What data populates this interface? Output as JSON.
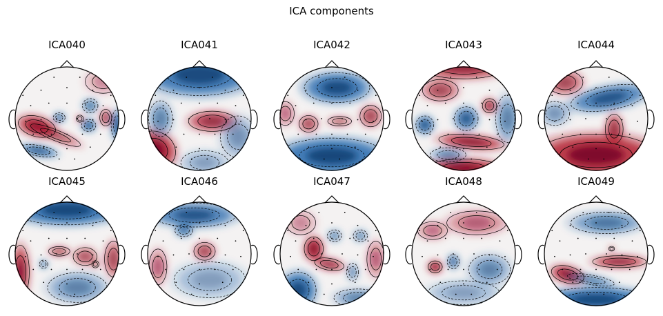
{
  "figure": {
    "title": "ICA components",
    "components": [
      {
        "label": "ICA040",
        "blobs": [
          {
            "u": -0.58,
            "v": 0.15,
            "rx": 0.32,
            "ry": 0.17,
            "rot": 15,
            "sign": 1,
            "amp": 0.95
          },
          {
            "u": -0.22,
            "v": 0.32,
            "rx": 0.45,
            "ry": 0.09,
            "rot": 22,
            "sign": 1,
            "amp": 0.6
          },
          {
            "u": -0.55,
            "v": 0.62,
            "rx": 0.32,
            "ry": 0.09,
            "rot": 10,
            "sign": -1,
            "amp": 0.9
          },
          {
            "u": -0.15,
            "v": -0.02,
            "rx": 0.1,
            "ry": 0.08,
            "rot": 0,
            "sign": -1,
            "amp": 0.8
          },
          {
            "u": 0.25,
            "v": 0.0,
            "rx": 0.06,
            "ry": 0.06,
            "rot": 0,
            "sign": 1,
            "amp": 0.6
          },
          {
            "u": 0.45,
            "v": -0.25,
            "rx": 0.13,
            "ry": 0.12,
            "rot": 0,
            "sign": -1,
            "amp": 0.6
          },
          {
            "u": 0.42,
            "v": 0.13,
            "rx": 0.12,
            "ry": 0.1,
            "rot": 0,
            "sign": -1,
            "amp": 0.95
          },
          {
            "u": 0.75,
            "v": -0.02,
            "rx": 0.1,
            "ry": 0.14,
            "rot": 0,
            "sign": 1,
            "amp": 0.65
          },
          {
            "u": 0.97,
            "v": 0.12,
            "rx": 0.1,
            "ry": 0.25,
            "rot": 0,
            "sign": -1,
            "amp": 0.9
          },
          {
            "u": 0.7,
            "v": -0.72,
            "rx": 0.3,
            "ry": 0.2,
            "rot": 0,
            "sign": 1,
            "amp": 0.3
          }
        ]
      },
      {
        "label": "ICA041",
        "blobs": [
          {
            "u": 0.0,
            "v": -0.85,
            "rx": 0.9,
            "ry": 0.35,
            "rot": 0,
            "sign": -1,
            "amp": 0.95
          },
          {
            "u": -0.85,
            "v": 0.6,
            "rx": 0.35,
            "ry": 0.3,
            "rot": 30,
            "sign": 1,
            "amp": 1.0
          },
          {
            "u": 0.25,
            "v": 0.05,
            "rx": 0.4,
            "ry": 0.17,
            "rot": 0,
            "sign": 1,
            "amp": 0.75
          },
          {
            "u": -0.75,
            "v": 0.0,
            "rx": 0.2,
            "ry": 0.3,
            "rot": 0,
            "sign": -1,
            "amp": 0.5
          },
          {
            "u": 0.75,
            "v": 0.35,
            "rx": 0.3,
            "ry": 0.35,
            "rot": 0,
            "sign": -1,
            "amp": 0.4
          },
          {
            "u": 0.1,
            "v": 0.85,
            "rx": 0.4,
            "ry": 0.2,
            "rot": 0,
            "sign": -1,
            "amp": 0.35
          }
        ]
      },
      {
        "label": "ICA042",
        "blobs": [
          {
            "u": 0.1,
            "v": -0.6,
            "rx": 0.55,
            "ry": 0.25,
            "rot": 0,
            "sign": -1,
            "amp": 0.95
          },
          {
            "u": 0.0,
            "v": 0.72,
            "rx": 0.9,
            "ry": 0.3,
            "rot": 0,
            "sign": -1,
            "amp": 1.0
          },
          {
            "u": -0.45,
            "v": 0.1,
            "rx": 0.16,
            "ry": 0.14,
            "rot": 0,
            "sign": 1,
            "amp": 0.6
          },
          {
            "u": 0.15,
            "v": 0.05,
            "rx": 0.2,
            "ry": 0.08,
            "rot": 0,
            "sign": 1,
            "amp": 0.5
          },
          {
            "u": 0.75,
            "v": -0.05,
            "rx": 0.18,
            "ry": 0.18,
            "rot": 0,
            "sign": 1,
            "amp": 0.6
          },
          {
            "u": -0.9,
            "v": -0.1,
            "rx": 0.15,
            "ry": 0.2,
            "rot": 0,
            "sign": 1,
            "amp": 0.4
          }
        ]
      },
      {
        "label": "ICA043",
        "blobs": [
          {
            "u": 0.0,
            "v": -1.0,
            "rx": 0.7,
            "ry": 0.2,
            "rot": 0,
            "sign": 1,
            "amp": 0.8
          },
          {
            "u": -0.45,
            "v": -0.55,
            "rx": 0.3,
            "ry": 0.18,
            "rot": 0,
            "sign": 1,
            "amp": 0.6
          },
          {
            "u": -0.75,
            "v": 0.12,
            "rx": 0.15,
            "ry": 0.15,
            "rot": 0,
            "sign": -1,
            "amp": 0.9
          },
          {
            "u": 0.05,
            "v": 0.0,
            "rx": 0.2,
            "ry": 0.2,
            "rot": 0,
            "sign": -1,
            "amp": 0.8
          },
          {
            "u": 0.5,
            "v": -0.25,
            "rx": 0.12,
            "ry": 0.12,
            "rot": 0,
            "sign": 1,
            "amp": 0.8
          },
          {
            "u": 0.15,
            "v": 0.45,
            "rx": 0.55,
            "ry": 0.12,
            "rot": 5,
            "sign": 1,
            "amp": 0.9
          },
          {
            "u": 0.0,
            "v": 0.95,
            "rx": 0.6,
            "ry": 0.15,
            "rot": 0,
            "sign": 1,
            "amp": 1.0
          },
          {
            "u": 0.85,
            "v": 0.0,
            "rx": 0.2,
            "ry": 0.4,
            "rot": 0,
            "sign": -1,
            "amp": 0.5
          },
          {
            "u": -0.3,
            "v": 0.7,
            "rx": 0.3,
            "ry": 0.12,
            "rot": 0,
            "sign": -1,
            "amp": 0.5
          }
        ]
      },
      {
        "label": "ICA044",
        "blobs": [
          {
            "u": 0.0,
            "v": 0.7,
            "rx": 1.0,
            "ry": 0.35,
            "rot": 0,
            "sign": 1,
            "amp": 1.0
          },
          {
            "u": 0.25,
            "v": -0.4,
            "rx": 0.65,
            "ry": 0.2,
            "rot": -10,
            "sign": -1,
            "amp": 0.85
          },
          {
            "u": -0.6,
            "v": -0.7,
            "rx": 0.3,
            "ry": 0.2,
            "rot": 0,
            "sign": 1,
            "amp": 0.6
          },
          {
            "u": 0.35,
            "v": 0.2,
            "rx": 0.15,
            "ry": 0.25,
            "rot": 0,
            "sign": 1,
            "amp": 0.7
          },
          {
            "u": -0.8,
            "v": -0.1,
            "rx": 0.25,
            "ry": 0.2,
            "rot": 0,
            "sign": -1,
            "amp": 0.4
          }
        ]
      },
      {
        "label": "ICA045",
        "blobs": [
          {
            "u": 0.0,
            "v": -0.85,
            "rx": 0.9,
            "ry": 0.25,
            "rot": 0,
            "sign": -1,
            "amp": 1.0
          },
          {
            "u": -0.9,
            "v": 0.35,
            "rx": 0.15,
            "ry": 0.45,
            "rot": 0,
            "sign": 1,
            "amp": 0.85
          },
          {
            "u": 0.9,
            "v": 0.1,
            "rx": 0.15,
            "ry": 0.3,
            "rot": 0,
            "sign": 1,
            "amp": 0.6
          },
          {
            "u": -0.15,
            "v": -0.05,
            "rx": 0.18,
            "ry": 0.08,
            "rot": 0,
            "sign": 1,
            "amp": 0.6
          },
          {
            "u": 0.35,
            "v": 0.05,
            "rx": 0.2,
            "ry": 0.15,
            "rot": 0,
            "sign": 1,
            "amp": 0.55
          },
          {
            "u": 0.55,
            "v": 0.2,
            "rx": 0.06,
            "ry": 0.06,
            "rot": 0,
            "sign": 1,
            "amp": 0.7
          },
          {
            "u": -0.45,
            "v": 0.2,
            "rx": 0.07,
            "ry": 0.07,
            "rot": 0,
            "sign": -1,
            "amp": 0.7
          },
          {
            "u": 0.2,
            "v": 0.65,
            "rx": 0.5,
            "ry": 0.25,
            "rot": 0,
            "sign": -1,
            "amp": 0.5
          }
        ]
      },
      {
        "label": "ICA046",
        "blobs": [
          {
            "u": -0.1,
            "v": -0.75,
            "rx": 0.7,
            "ry": 0.2,
            "rot": 0,
            "sign": -1,
            "amp": 0.85
          },
          {
            "u": -0.3,
            "v": -0.45,
            "rx": 0.15,
            "ry": 0.1,
            "rot": 0,
            "sign": -1,
            "amp": 0.7
          },
          {
            "u": -0.8,
            "v": 0.25,
            "rx": 0.15,
            "ry": 0.3,
            "rot": 0,
            "sign": 1,
            "amp": 0.45
          },
          {
            "u": 0.1,
            "v": -0.05,
            "rx": 0.18,
            "ry": 0.15,
            "rot": 0,
            "sign": 1,
            "amp": 0.6
          },
          {
            "u": 0.2,
            "v": 0.5,
            "rx": 0.6,
            "ry": 0.3,
            "rot": 0,
            "sign": -1,
            "amp": 0.35
          }
        ]
      },
      {
        "label": "ICA047",
        "blobs": [
          {
            "u": -0.35,
            "v": -0.1,
            "rx": 0.16,
            "ry": 0.2,
            "rot": 0,
            "sign": 1,
            "amp": 0.95
          },
          {
            "u": -0.05,
            "v": 0.2,
            "rx": 0.25,
            "ry": 0.1,
            "rot": 10,
            "sign": 1,
            "amp": 0.75
          },
          {
            "u": -0.65,
            "v": 0.7,
            "rx": 0.3,
            "ry": 0.3,
            "rot": 0,
            "sign": -1,
            "amp": 0.95
          },
          {
            "u": 0.55,
            "v": -0.35,
            "rx": 0.12,
            "ry": 0.1,
            "rot": 0,
            "sign": -1,
            "amp": 0.5
          },
          {
            "u": 0.05,
            "v": -0.35,
            "rx": 0.12,
            "ry": 0.1,
            "rot": 0,
            "sign": -1,
            "amp": 0.5
          },
          {
            "u": 0.4,
            "v": 0.35,
            "rx": 0.1,
            "ry": 0.15,
            "rot": 0,
            "sign": -1,
            "amp": 0.45
          },
          {
            "u": 0.85,
            "v": 0.1,
            "rx": 0.15,
            "ry": 0.3,
            "rot": 0,
            "sign": 1,
            "amp": 0.45
          },
          {
            "u": 0.5,
            "v": 0.85,
            "rx": 0.4,
            "ry": 0.15,
            "rot": 0,
            "sign": -1,
            "amp": 0.5
          },
          {
            "u": -0.6,
            "v": -0.6,
            "rx": 0.25,
            "ry": 0.2,
            "rot": 0,
            "sign": 1,
            "amp": 0.3
          }
        ]
      },
      {
        "label": "ICA048",
        "blobs": [
          {
            "u": -0.55,
            "v": 0.25,
            "rx": 0.12,
            "ry": 0.1,
            "rot": 0,
            "sign": 1,
            "amp": 1.0
          },
          {
            "u": -0.2,
            "v": 0.15,
            "rx": 0.1,
            "ry": 0.12,
            "rot": 0,
            "sign": -1,
            "amp": 0.75
          },
          {
            "u": 0.25,
            "v": -0.6,
            "rx": 0.5,
            "ry": 0.2,
            "rot": 0,
            "sign": 1,
            "amp": 0.45
          },
          {
            "u": 0.5,
            "v": 0.3,
            "rx": 0.35,
            "ry": 0.25,
            "rot": 0,
            "sign": -1,
            "amp": 0.5
          },
          {
            "u": -0.6,
            "v": -0.45,
            "rx": 0.25,
            "ry": 0.15,
            "rot": 0,
            "sign": 1,
            "amp": 0.4
          },
          {
            "u": 0.0,
            "v": 0.75,
            "rx": 0.6,
            "ry": 0.2,
            "rot": 0,
            "sign": -1,
            "amp": 0.35
          }
        ]
      },
      {
        "label": "ICA049",
        "blobs": [
          {
            "u": 0.0,
            "v": 0.88,
            "rx": 0.9,
            "ry": 0.2,
            "rot": 0,
            "sign": -1,
            "amp": 1.0
          },
          {
            "u": -0.55,
            "v": 0.4,
            "rx": 0.28,
            "ry": 0.14,
            "rot": 15,
            "sign": 1,
            "amp": 0.95
          },
          {
            "u": 0.45,
            "v": 0.15,
            "rx": 0.45,
            "ry": 0.1,
            "rot": 0,
            "sign": 1,
            "amp": 0.85
          },
          {
            "u": 0.2,
            "v": -0.6,
            "rx": 0.6,
            "ry": 0.18,
            "rot": 0,
            "sign": -1,
            "amp": 0.6
          },
          {
            "u": 0.3,
            "v": -0.1,
            "rx": 0.05,
            "ry": 0.04,
            "rot": 0,
            "sign": 1,
            "amp": 0.6
          },
          {
            "u": -0.1,
            "v": 0.5,
            "rx": 0.4,
            "ry": 0.08,
            "rot": 10,
            "sign": -1,
            "amp": 0.6
          }
        ]
      }
    ]
  }
}
